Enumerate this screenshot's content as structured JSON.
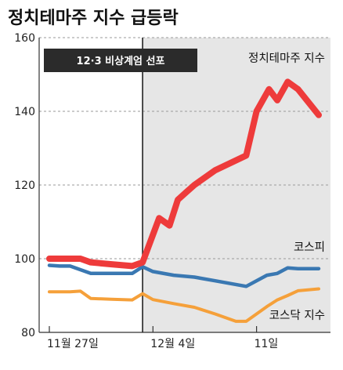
{
  "chart_data": {
    "type": "line",
    "title": "정치테마주 지수 급등락",
    "xlabel": "",
    "ylabel": "",
    "ylim": [
      80,
      160
    ],
    "yticks": [
      80,
      100,
      120,
      140,
      160
    ],
    "grid": true,
    "x_tick_labels": [
      {
        "label": "11월 27일",
        "x": 0
      },
      {
        "label": "12월 4일",
        "x": 5
      },
      {
        "label": "11일",
        "x": 10
      }
    ],
    "event": {
      "label": "12·3 비상계엄 선포",
      "x": 4.5
    },
    "series": [
      {
        "name": "정치테마주 지수",
        "color": "#ee3b3b",
        "x": [
          0,
          1,
          1.5,
          2,
          3,
          4,
          4.5,
          5.3,
          5.8,
          6.2,
          6.6,
          7,
          8,
          9.5,
          10.0,
          10.6,
          11.0,
          11.5,
          12,
          13
        ],
        "values": [
          100,
          100,
          100,
          99,
          98.5,
          98,
          99,
          111,
          109,
          116,
          118,
          120,
          124,
          128,
          140,
          146,
          143,
          148,
          146,
          139
        ]
      },
      {
        "name": "코스피",
        "color": "#3a78b2",
        "x": [
          0,
          0.5,
          1,
          2,
          3,
          4,
          4.5,
          5,
          6,
          7,
          8,
          9.5,
          10.5,
          11.0,
          11.5,
          12,
          13
        ],
        "values": [
          98.2,
          98,
          98,
          96,
          96,
          96,
          97.8,
          96.5,
          95.5,
          95,
          94,
          92.5,
          95.5,
          96,
          97.5,
          97.3,
          97.3
        ]
      },
      {
        "name": "코스닥 지수",
        "color": "#f5a03a",
        "x": [
          0,
          0.5,
          1,
          1.5,
          2,
          3,
          4,
          4.5,
          5,
          6,
          7,
          8,
          9,
          9.5,
          10.5,
          11.0,
          11.5,
          12,
          13
        ],
        "values": [
          91,
          91,
          91,
          91.2,
          89.2,
          89,
          88.8,
          90.5,
          88.9,
          87.8,
          86.8,
          85,
          83,
          83,
          87,
          88.8,
          90,
          91.3,
          91.8
        ]
      }
    ]
  }
}
